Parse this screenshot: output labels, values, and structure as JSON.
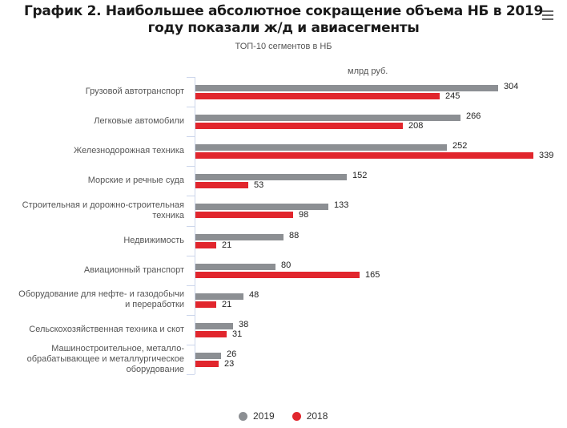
{
  "header": {
    "title_line1": "График 2. Наибольшее абсолютное сокращение объема НБ в 2019",
    "title_line2": "году показали ж/д и авиасегменты",
    "subtitle": "ТОП-10 сегментов в НБ",
    "unit": "млрд руб.",
    "menu_icon": "hamburger-menu-icon"
  },
  "colors": {
    "series_2019": "#8c8f93",
    "series_2018": "#e1262d",
    "axis": "#ccd6eb"
  },
  "legend": [
    {
      "label": "2019",
      "color": "#8c8f93"
    },
    {
      "label": "2018",
      "color": "#e1262d"
    }
  ],
  "chart_data": {
    "type": "bar",
    "orientation": "horizontal",
    "title": "График 2. Наибольшее абсолютное сокращение объема НБ в 2019 году показали ж/д и авиасегменты",
    "subtitle": "ТОП-10 сегментов в НБ",
    "xlabel": "млрд руб.",
    "ylabel": "",
    "grid": false,
    "legend_position": "bottom",
    "categories": [
      "Грузовой автотранспорт",
      "Легковые автомобили",
      "Железнодорожная техника",
      "Морские и речные суда",
      "Строительная и дорожно-строительная техника",
      "Недвижимость",
      "Авиационный транспорт",
      "Оборудование для нефте- и газодобычи и переработки",
      "Сельскохозяйственная техника и скот",
      "Машиностроительное, металлообрабатывающее и металлургическое оборудование"
    ],
    "series": [
      {
        "name": "2019",
        "values": [
          304,
          266,
          252,
          152,
          133,
          88,
          80,
          48,
          38,
          26
        ]
      },
      {
        "name": "2018",
        "values": [
          245,
          208,
          339,
          53,
          98,
          21,
          165,
          21,
          31,
          23
        ]
      }
    ],
    "xlim": [
      0,
      339
    ]
  },
  "labels": [
    [
      "Грузовой автотранспорт"
    ],
    [
      "Легковые автомобили"
    ],
    [
      "Железнодорожная техника"
    ],
    [
      "Морские и речные суда"
    ],
    [
      "Строительная и дорожно-строительная",
      "техника"
    ],
    [
      "Недвижимость"
    ],
    [
      "Авиационный транспорт"
    ],
    [
      "Оборудование для нефте- и газодобычи",
      "и переработки"
    ],
    [
      "Сельскохозяйственная техника и скот"
    ],
    [
      "Машиностроительное, металло-",
      "обрабатывающее и металлургическое",
      "оборудование"
    ]
  ]
}
